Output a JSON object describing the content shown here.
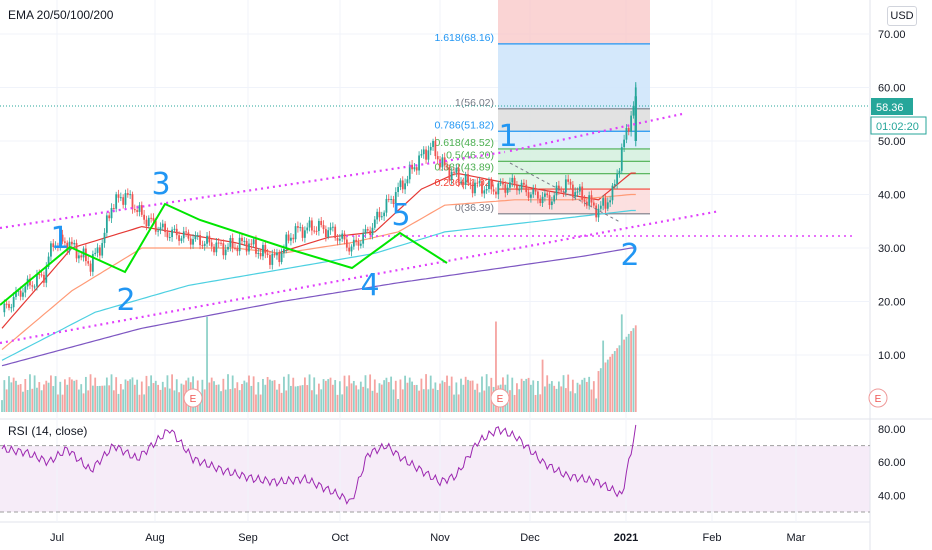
{
  "header": {
    "indicator": "EMA 20/50/100/200",
    "rsi": "RSI (14, close)",
    "currency": "USD"
  },
  "price_axis": {
    "ticks": [
      "70.00",
      "60.00",
      "50.00",
      "40.00",
      "30.00",
      "20.00",
      "10.00"
    ],
    "last_price": "58.36",
    "countdown": "01:02:20"
  },
  "rsi_axis": {
    "ticks": [
      "80.00",
      "60.00",
      "40.00"
    ]
  },
  "time_axis": {
    "ticks": [
      "Jul",
      "Aug",
      "Sep",
      "Oct",
      "Nov",
      "Dec",
      "2021",
      "Feb",
      "Mar"
    ]
  },
  "fib_labels": [
    "1.618(68.16)",
    "1(56.02)",
    "0.786(51.82)",
    "0.618(48.52)",
    "0.5(46.20)",
    "0.382(43.89)",
    "0.236(41.02)",
    "0(36.39)"
  ],
  "wave_labels": [
    "1",
    "2",
    "3",
    "2",
    "4",
    "5",
    "1",
    "2"
  ],
  "earnings_marker": "E",
  "colors": {
    "up": "#26a69a",
    "down": "#ef5350",
    "wave": "#2196f3",
    "channel": "#e040fb",
    "impulse": "#00e600",
    "rsi": "#9c27b0",
    "ema20": "#e53935",
    "ema50": "#ff9a76",
    "ema100": "#4dd0e1",
    "ema200": "#7e57c2"
  },
  "chart_data": {
    "type": "candlestick",
    "series_name": "EMA 20/50/100/200",
    "x_ticks": [
      "Jul",
      "Aug",
      "Sep",
      "Oct",
      "Nov",
      "Dec",
      "2021",
      "Feb",
      "Mar"
    ],
    "ylim": [
      5,
      75
    ],
    "price_anchors": [
      [
        0,
        18
      ],
      [
        8,
        22
      ],
      [
        18,
        25
      ],
      [
        22,
        31
      ],
      [
        28,
        31
      ],
      [
        38,
        27
      ],
      [
        43,
        31
      ],
      [
        47,
        38
      ],
      [
        53,
        40
      ],
      [
        60,
        36
      ],
      [
        70,
        33
      ],
      [
        80,
        32
      ],
      [
        95,
        30
      ],
      [
        105,
        31
      ],
      [
        112,
        29
      ],
      [
        118,
        28
      ],
      [
        125,
        33
      ],
      [
        135,
        34
      ],
      [
        142,
        33
      ],
      [
        150,
        30
      ],
      [
        157,
        33
      ],
      [
        165,
        38
      ],
      [
        172,
        42
      ],
      [
        178,
        46
      ],
      [
        184,
        49
      ],
      [
        190,
        45
      ],
      [
        200,
        42
      ],
      [
        210,
        41
      ],
      [
        220,
        42
      ],
      [
        228,
        40
      ],
      [
        235,
        39
      ],
      [
        242,
        42
      ],
      [
        248,
        40
      ],
      [
        256,
        37
      ],
      [
        262,
        40
      ],
      [
        266,
        48
      ],
      [
        270,
        55
      ],
      [
        272,
        58.36
      ]
    ],
    "ema": [
      {
        "name": "EMA 20",
        "color": "#e53935",
        "points": [
          [
            0,
            15
          ],
          [
            30,
            30
          ],
          [
            60,
            34
          ],
          [
            100,
            31
          ],
          [
            118,
            29
          ],
          [
            140,
            32
          ],
          [
            160,
            33
          ],
          [
            180,
            41
          ],
          [
            195,
            44
          ],
          [
            230,
            41
          ],
          [
            256,
            39
          ],
          [
            270,
            44
          ]
        ]
      },
      {
        "name": "EMA 50",
        "color": "#ff9a76",
        "points": [
          [
            0,
            11
          ],
          [
            30,
            22
          ],
          [
            60,
            30
          ],
          [
            100,
            30
          ],
          [
            120,
            29
          ],
          [
            150,
            31
          ],
          [
            170,
            33
          ],
          [
            190,
            38
          ],
          [
            220,
            39
          ],
          [
            245,
            39
          ],
          [
            270,
            40
          ]
        ]
      },
      {
        "name": "EMA 100",
        "color": "#4dd0e1",
        "points": [
          [
            0,
            9
          ],
          [
            40,
            18
          ],
          [
            80,
            23
          ],
          [
            120,
            26
          ],
          [
            160,
            29
          ],
          [
            190,
            33
          ],
          [
            230,
            35
          ],
          [
            270,
            37
          ]
        ]
      },
      {
        "name": "EMA 200",
        "color": "#7e57c2",
        "points": [
          [
            0,
            8
          ],
          [
            60,
            15
          ],
          [
            120,
            20
          ],
          [
            170,
            23.5
          ],
          [
            210,
            26
          ],
          [
            250,
            28.5
          ],
          [
            270,
            30
          ]
        ]
      }
    ],
    "volume": {
      "max": 21,
      "spikes": [
        [
          88,
          20
        ],
        [
          212,
          19
        ],
        [
          232,
          11
        ],
        [
          258,
          15
        ],
        [
          266,
          20.5
        ]
      ]
    },
    "fibonacci": [
      {
        "level": "1.618",
        "price": 68.16,
        "color": "#2196f3"
      },
      {
        "level": "1",
        "price": 56.02,
        "color": "#787b86"
      },
      {
        "level": "0.786",
        "price": 51.82,
        "color": "#2196f3"
      },
      {
        "level": "0.618",
        "price": 48.52,
        "color": "#4caf50"
      },
      {
        "level": "0.5",
        "price": 46.2,
        "color": "#4caf50"
      },
      {
        "level": "0.382",
        "price": 43.89,
        "color": "#4caf50"
      },
      {
        "level": "0.236",
        "price": 41.02,
        "color": "#f44336"
      },
      {
        "level": "0",
        "price": 36.39,
        "color": "#787b86"
      }
    ],
    "rsi": {
      "name": "RSI (14, close)",
      "ylim": [
        30,
        85
      ],
      "bands": [
        70,
        30
      ],
      "points": [
        [
          0,
          68
        ],
        [
          10,
          66
        ],
        [
          20,
          60
        ],
        [
          28,
          68
        ],
        [
          38,
          55
        ],
        [
          48,
          70
        ],
        [
          58,
          62
        ],
        [
          72,
          80
        ],
        [
          82,
          62
        ],
        [
          95,
          55
        ],
        [
          108,
          50
        ],
        [
          118,
          48
        ],
        [
          130,
          50
        ],
        [
          142,
          42
        ],
        [
          150,
          36
        ],
        [
          157,
          65
        ],
        [
          165,
          70
        ],
        [
          172,
          62
        ],
        [
          180,
          55
        ],
        [
          188,
          48
        ],
        [
          195,
          52
        ],
        [
          204,
          72
        ],
        [
          213,
          80
        ],
        [
          221,
          75
        ],
        [
          232,
          60
        ],
        [
          242,
          52
        ],
        [
          256,
          48
        ],
        [
          266,
          40
        ],
        [
          272,
          80
        ]
      ]
    },
    "annotations": [
      {
        "text": "1",
        "x": 28,
        "y": 30
      },
      {
        "text": "2",
        "x": 57,
        "y": 23
      },
      {
        "text": "3",
        "x": 73,
        "y": 42
      },
      {
        "text": "2",
        "x": 165,
        "y": 22
      },
      {
        "text": "4",
        "x": 170,
        "y": 22
      },
      {
        "text": "5",
        "x": 186,
        "y": 40
      },
      {
        "text": "1",
        "x": 232,
        "y": 49
      },
      {
        "text": "2",
        "x": 290,
        "y": 32
      }
    ]
  }
}
